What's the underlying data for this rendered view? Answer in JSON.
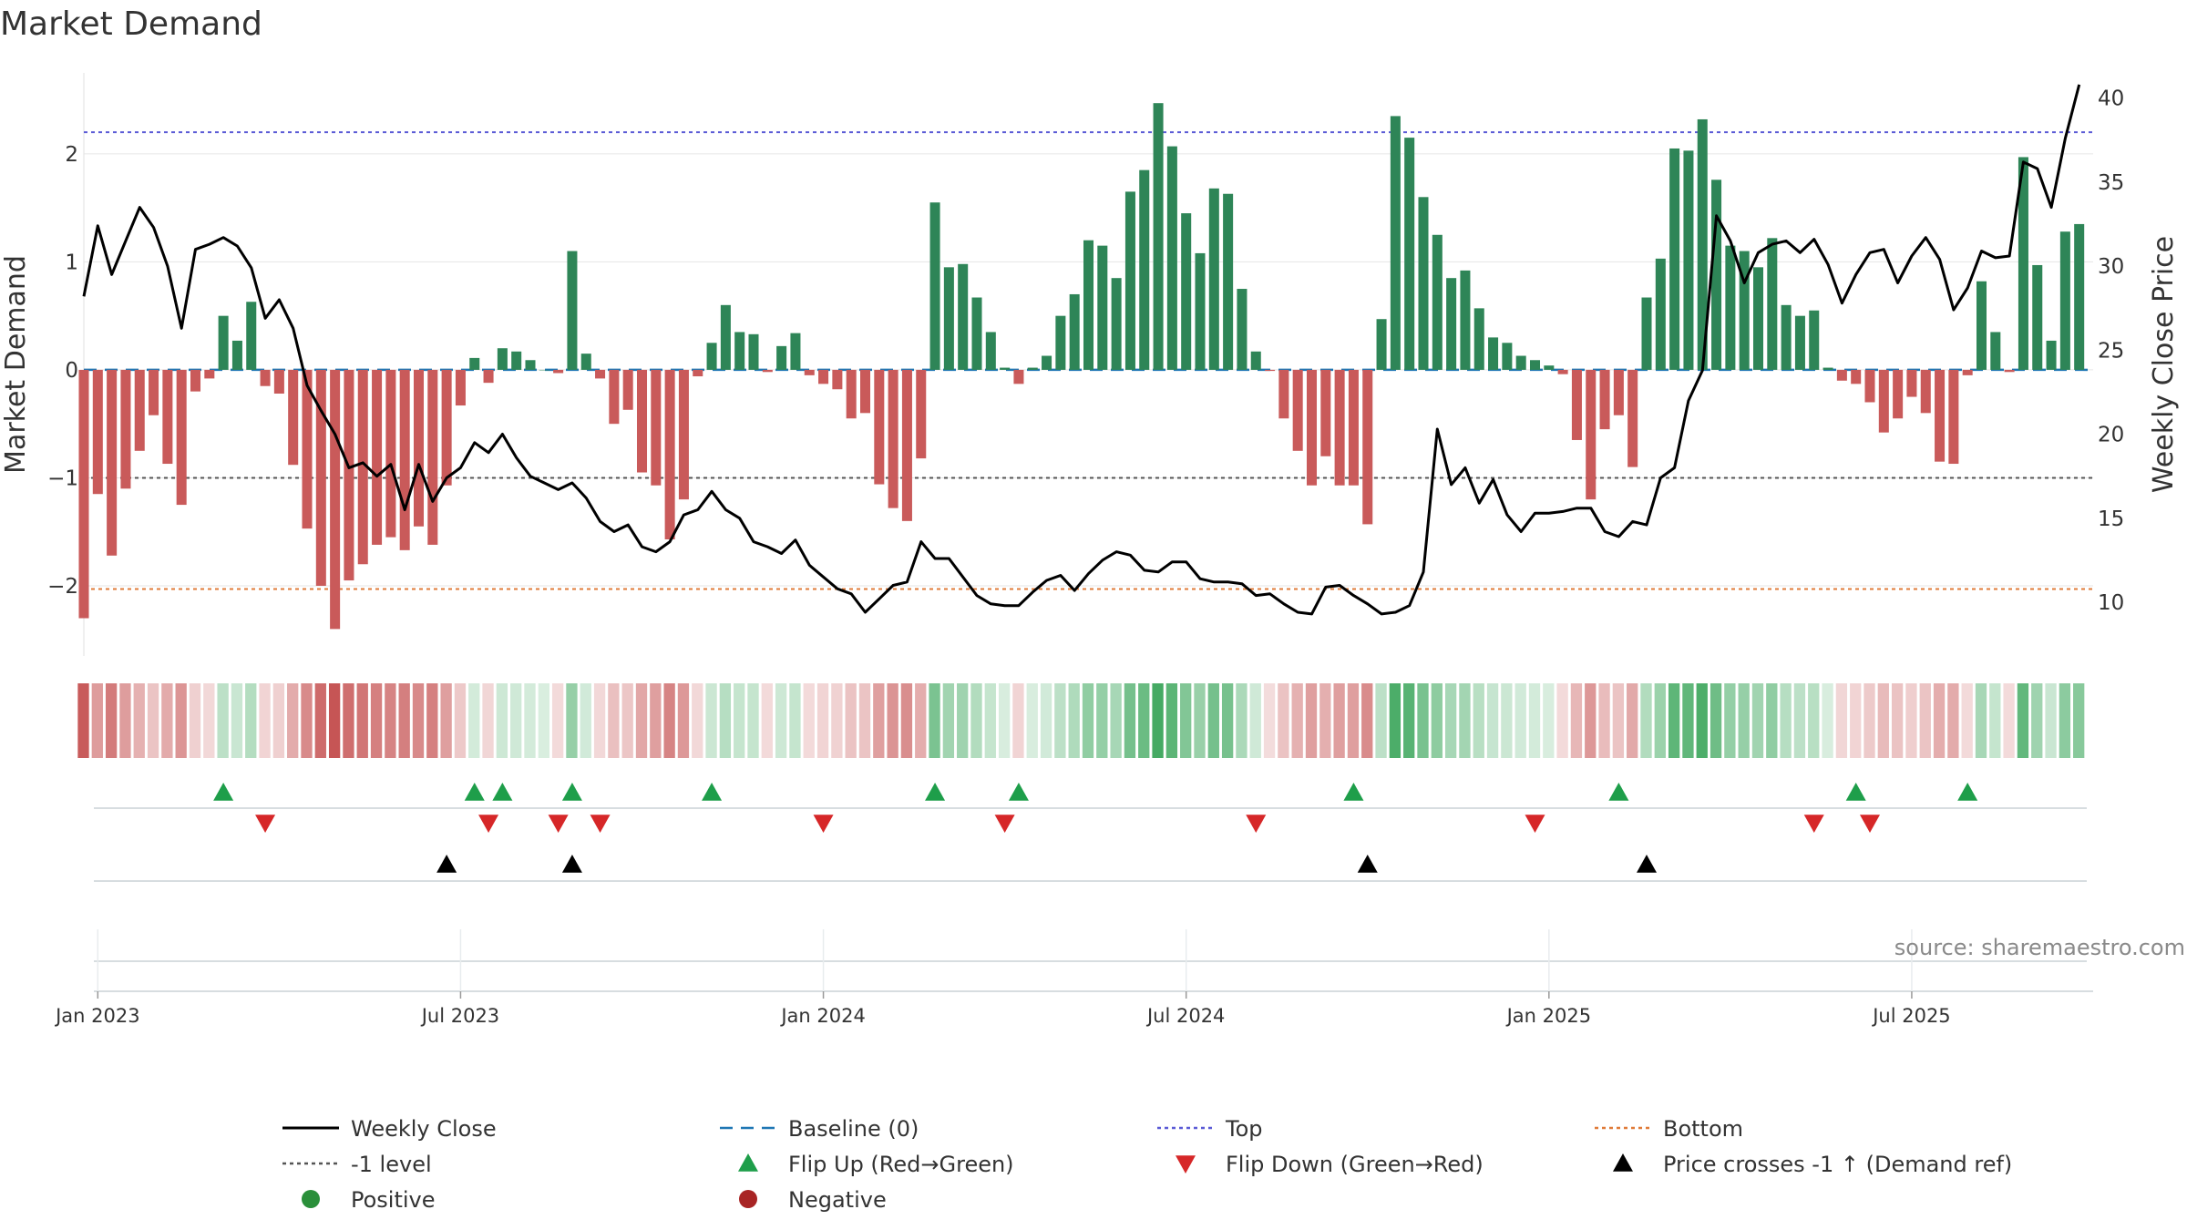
{
  "chart_data": {
    "type": "bar",
    "title": "Market Demand",
    "ylabel": "Market Demand",
    "y2label": "Weekly Close Price",
    "ylim": [
      -2.65,
      2.75
    ],
    "y2lim": [
      6.8,
      41.5
    ],
    "yticks": [
      -2,
      -1,
      0,
      1,
      2
    ],
    "y2ticks": [
      10,
      15,
      20,
      25,
      30,
      35,
      40
    ],
    "ytick_labels": [
      "−2",
      "−1",
      "0",
      "1",
      "2"
    ],
    "y2tick_labels": [
      "10",
      "15",
      "20",
      "25",
      "30",
      "35",
      "40"
    ],
    "date_ticks": [
      {
        "label": "Jan 2023",
        "week": 1
      },
      {
        "label": "Jul 2023",
        "week": 27
      },
      {
        "label": "Jan 2024",
        "week": 53
      },
      {
        "label": "Jul 2024",
        "week": 79
      },
      {
        "label": "Jan 2025",
        "week": 105
      },
      {
        "label": "Jul 2025",
        "week": 131
      }
    ],
    "week_range": [
      0,
      144
    ],
    "reference_lines": {
      "top": 2.2,
      "bottom": -2.03,
      "minus_one": -1.0,
      "baseline": 0
    },
    "demand": [
      -2.3,
      -1.15,
      -1.72,
      -1.1,
      -0.75,
      -0.42,
      -0.87,
      -1.25,
      -0.2,
      -0.08,
      0.5,
      0.27,
      0.63,
      -0.15,
      -0.22,
      -0.88,
      -1.47,
      -2.0,
      -2.4,
      -1.95,
      -1.8,
      -1.62,
      -1.55,
      -1.67,
      -1.45,
      -1.62,
      -1.07,
      -0.33,
      0.11,
      -0.12,
      0.2,
      0.17,
      0.09,
      0.0,
      -0.03,
      1.1,
      0.15,
      -0.08,
      -0.5,
      -0.37,
      -0.95,
      -1.07,
      -1.57,
      -1.2,
      -0.06,
      0.25,
      0.6,
      0.35,
      0.33,
      -0.02,
      0.22,
      0.34,
      -0.05,
      -0.13,
      -0.18,
      -0.45,
      -0.4,
      -1.06,
      -1.28,
      -1.4,
      -0.82,
      1.55,
      0.95,
      0.98,
      0.67,
      0.35,
      0.02,
      -0.13,
      0.02,
      0.13,
      0.5,
      0.7,
      1.2,
      1.15,
      0.85,
      1.65,
      1.85,
      2.47,
      2.07,
      1.45,
      1.08,
      1.68,
      1.63,
      0.75,
      0.17,
      -0.01,
      -0.45,
      -0.75,
      -1.07,
      -0.8,
      -1.07,
      -1.07,
      -1.43,
      0.47,
      2.35,
      2.15,
      1.6,
      1.25,
      0.85,
      0.92,
      0.57,
      0.3,
      0.25,
      0.13,
      0.09,
      0.04,
      -0.04,
      -0.65,
      -1.2,
      -0.55,
      -0.42,
      -0.9,
      0.67,
      1.03,
      2.05,
      2.03,
      2.32,
      1.76,
      1.15,
      1.1,
      0.95,
      1.22,
      0.6,
      0.5,
      0.55,
      0.02,
      -0.1,
      -0.13,
      -0.3,
      -0.58,
      -0.45,
      -0.25,
      -0.4,
      -0.85,
      -0.87,
      -0.05,
      0.82,
      0.35,
      -0.02,
      1.97,
      0.97,
      0.27,
      1.28,
      1.35
    ],
    "weekly_close": [
      28.2,
      32.4,
      29.5,
      31.5,
      33.5,
      32.3,
      30.0,
      26.3,
      31.0,
      31.3,
      31.7,
      31.2,
      29.9,
      26.9,
      28.0,
      26.3,
      22.9,
      21.4,
      20.0,
      18.0,
      18.3,
      17.5,
      18.2,
      15.5,
      18.2,
      16.0,
      17.4,
      18.0,
      19.5,
      18.9,
      20.0,
      18.6,
      17.5,
      17.1,
      16.7,
      17.1,
      16.2,
      14.8,
      14.2,
      14.6,
      13.3,
      13.0,
      13.6,
      15.2,
      15.5,
      16.6,
      15.5,
      15.0,
      13.6,
      13.3,
      12.9,
      13.7,
      12.2,
      11.5,
      10.8,
      10.5,
      9.4,
      10.2,
      11.0,
      11.2,
      13.6,
      12.6,
      12.6,
      11.5,
      10.4,
      9.9,
      9.8,
      9.8,
      10.6,
      11.3,
      11.6,
      10.7,
      11.7,
      12.5,
      13.0,
      12.8,
      11.9,
      11.8,
      12.4,
      12.4,
      11.4,
      11.2,
      11.2,
      11.1,
      10.4,
      10.5,
      9.9,
      9.4,
      9.3,
      10.9,
      11.0,
      10.4,
      9.9,
      9.3,
      9.4,
      9.8,
      11.8,
      20.3,
      17.0,
      18.0,
      15.9,
      17.3,
      15.2,
      14.2,
      15.3,
      15.3,
      15.4,
      15.6,
      15.6,
      14.2,
      13.9,
      14.8,
      14.6,
      17.4,
      18.0,
      22.0,
      23.8,
      33.0,
      31.5,
      29.0,
      30.8,
      31.3,
      31.5,
      30.8,
      31.6,
      30.1,
      27.8,
      29.5,
      30.8,
      31.0,
      29.0,
      30.6,
      31.7,
      30.4,
      27.4,
      28.7,
      30.9,
      30.5,
      30.6,
      36.2,
      35.8,
      33.5,
      37.6,
      40.8
    ],
    "flip_up_weeks": [
      10,
      28,
      30,
      35,
      45,
      61,
      67,
      91,
      110,
      127,
      135
    ],
    "flip_down_weeks": [
      13,
      29,
      34,
      37,
      53,
      66,
      84,
      104,
      124,
      128
    ],
    "price_cross_weeks": [
      26,
      35,
      92,
      112
    ],
    "legend": [
      {
        "label": "Weekly Close",
        "kind": "line",
        "color": "#000000",
        "dash": "none"
      },
      {
        "label": "Baseline (0)",
        "kind": "line",
        "color": "#1f77b4",
        "dash": "14,9"
      },
      {
        "label": "Top",
        "kind": "line",
        "color": "#5b5bd6",
        "dash": "4,4"
      },
      {
        "label": "Bottom",
        "kind": "line",
        "color": "#e07b39",
        "dash": "4,4"
      },
      {
        "label": "-1 level",
        "kind": "line",
        "color": "#555555",
        "dash": "4,4"
      },
      {
        "label": "Flip Up (Red→Green)",
        "kind": "tri-up",
        "color": "#1e9e4a"
      },
      {
        "label": "Flip Down (Green→Red)",
        "kind": "tri-down",
        "color": "#d62728"
      },
      {
        "label": "Price crosses -1 ↑ (Demand ref)",
        "kind": "tri-up",
        "color": "#000000"
      },
      {
        "label": "Positive",
        "kind": "dot",
        "color": "#2a8f3a"
      },
      {
        "label": "Negative",
        "kind": "dot",
        "color": "#a82424"
      }
    ],
    "colors": {
      "positive": "#2e8557",
      "negative": "#c95a5a",
      "grid": "#e6e6e6"
    }
  },
  "source": "source: sharemaestro.com"
}
